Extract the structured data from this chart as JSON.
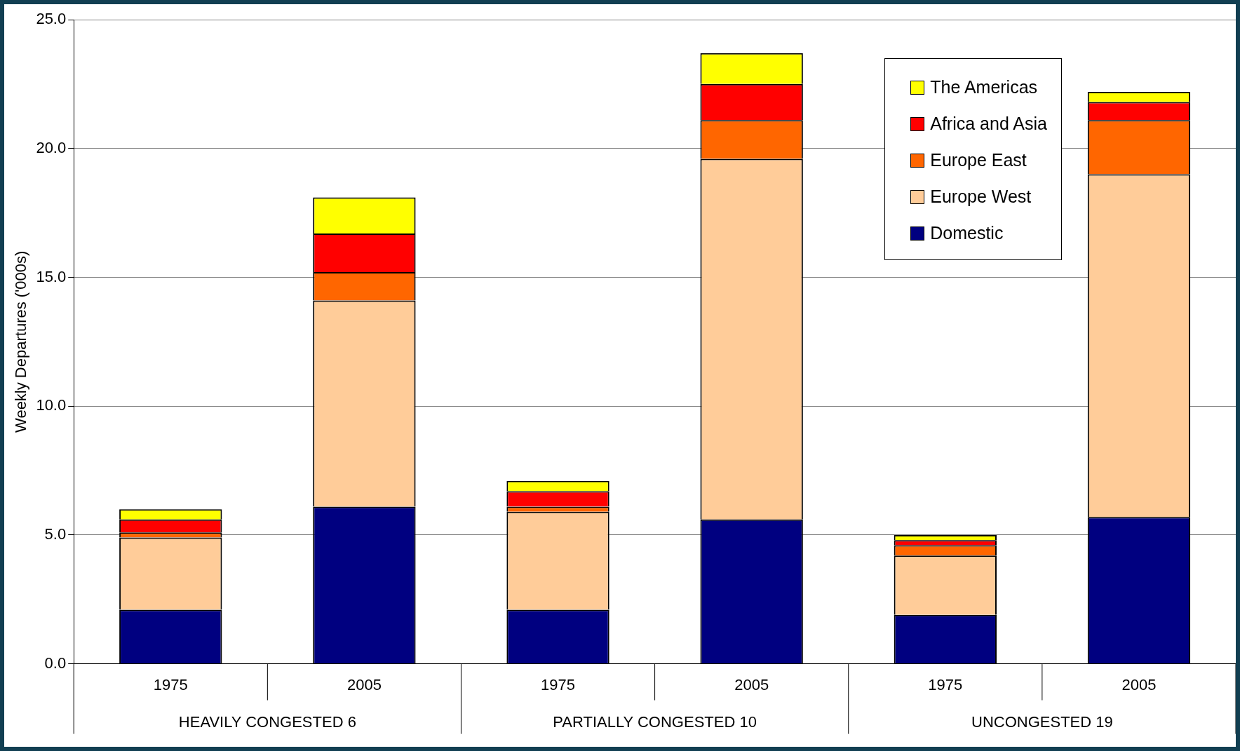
{
  "chart_data": {
    "type": "bar",
    "stacked": true,
    "ylabel": "Weekly Departures ('000s)",
    "categories": [
      "1975",
      "2005",
      "1975",
      "2005",
      "1975",
      "2005"
    ],
    "annotations": [
      "HEAVILY CONGESTED 6",
      "PARTIALLY CONGESTED 10",
      "UNCONGESTED 19"
    ],
    "series": [
      {
        "name": "Domestic",
        "color": "#000080",
        "values": [
          2.1,
          6.1,
          2.1,
          5.6,
          1.9,
          5.7
        ]
      },
      {
        "name": "Europe West",
        "color": "#ffcc99",
        "values": [
          2.8,
          8.0,
          3.8,
          14.0,
          2.3,
          13.3
        ]
      },
      {
        "name": "Europe East",
        "color": "#ff6600",
        "values": [
          0.2,
          1.1,
          0.2,
          1.5,
          0.4,
          2.1
        ]
      },
      {
        "name": "Africa and Asia",
        "color": "#ff0000",
        "values": [
          0.5,
          1.5,
          0.6,
          1.4,
          0.2,
          0.7
        ]
      },
      {
        "name": "The Americas",
        "color": "#ffff00",
        "values": [
          0.4,
          1.4,
          0.4,
          1.2,
          0.2,
          0.4
        ]
      }
    ],
    "ylim": [
      0,
      25
    ],
    "yticks": [
      {
        "value": 0,
        "label": "0.0"
      },
      {
        "value": 5,
        "label": "5.0"
      },
      {
        "value": 10,
        "label": "10.0"
      },
      {
        "value": 15,
        "label": "15.0"
      },
      {
        "value": 20,
        "label": "20.0"
      },
      {
        "value": 25,
        "label": "25.0"
      }
    ],
    "grid": "y",
    "legend": "top right"
  }
}
